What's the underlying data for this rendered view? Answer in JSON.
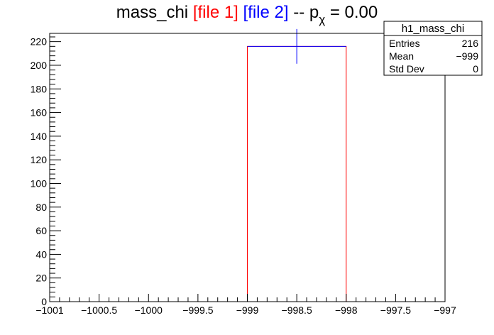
{
  "title": {
    "prefix": "mass_chi ",
    "file1": "[file 1]",
    "file2": "[file 2]",
    "suffix_pre": " -- p",
    "sub": "χ",
    "suffix_post": " = 0.00"
  },
  "colors": {
    "file1": "#ff0000",
    "file2": "#0000ff",
    "axis": "#000000"
  },
  "stats": {
    "name": "h1_mass_chi",
    "rows": [
      {
        "label": "Entries",
        "value": "216"
      },
      {
        "label": "Mean",
        "value": "−999"
      },
      {
        "label": "Std Dev",
        "value": "0"
      }
    ]
  },
  "chart_data": {
    "type": "histogram",
    "xlim": [
      -1001,
      -997
    ],
    "ylim": [
      0,
      227
    ],
    "x_ticks": [
      -1001,
      -1000.5,
      -1000,
      -999.5,
      -999,
      -998.5,
      -998,
      -997.5,
      -997
    ],
    "x_tick_labels": [
      "−1001",
      "−1000.5",
      "−1000",
      "−999.5",
      "−999",
      "−998.5",
      "−998",
      "−997.5",
      "−997"
    ],
    "y_ticks": [
      0,
      20,
      40,
      60,
      80,
      100,
      120,
      140,
      160,
      180,
      200,
      220
    ],
    "y_tick_labels": [
      "0",
      "20",
      "40",
      "60",
      "80",
      "100",
      "120",
      "140",
      "160",
      "180",
      "200",
      "220"
    ],
    "series": [
      {
        "name": "file 1",
        "style": "step",
        "color": "#ff0000",
        "bins": [
          {
            "x0": -999,
            "x1": -998,
            "y": 216
          }
        ]
      },
      {
        "name": "file 2",
        "style": "errorbar",
        "color": "#0000ff",
        "points": [
          {
            "x": -998.5,
            "y": 216,
            "xerr": 0.5,
            "yerr": 14.7
          }
        ]
      }
    ]
  }
}
